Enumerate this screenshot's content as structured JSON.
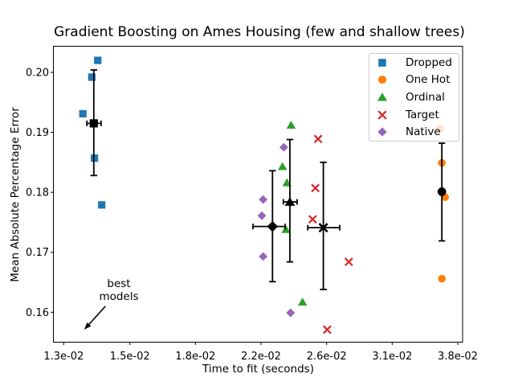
{
  "chart_data": {
    "type": "scatter",
    "title": "Gradient Boosting on Ames Housing (few and shallow trees)",
    "xlabel": "Time to fit (seconds)",
    "ylabel": "Mean Absolute Percentage Error",
    "x_scale": "log",
    "xlim": [
      0.0127,
      0.0385
    ],
    "ylim": [
      0.1551,
      0.2043
    ],
    "grid": false,
    "legend_position": "upper right",
    "x_axis": {
      "tick_values": [
        0.013,
        0.015,
        0.018,
        0.022,
        0.026,
        0.031,
        0.038
      ],
      "tick_labels": [
        "1.3e-02",
        "1.5e-02",
        "1.8e-02",
        "2.2e-02",
        "2.6e-02",
        "3.1e-02",
        "3.8e-02"
      ]
    },
    "y_axis": {
      "tick_values": [
        0.2,
        0.19,
        0.18,
        0.17,
        0.16
      ],
      "tick_labels": [
        "0.20",
        "0.19",
        "0.18",
        "0.17",
        "0.16"
      ]
    },
    "series": [
      {
        "name": "Dropped",
        "marker": "square",
        "color": "#1f77b4",
        "points": [
          [
            0.01403,
            0.202
          ],
          [
            0.01385,
            0.1992
          ],
          [
            0.01358,
            0.1931
          ],
          [
            0.01393,
            0.1857
          ],
          [
            0.01415,
            0.1779
          ]
        ],
        "mean": {
          "x": 0.01391,
          "y": 0.1915,
          "xlo": 0.0137,
          "xhi": 0.01413,
          "ylo": 0.1828,
          "yhi": 0.2004
        }
      },
      {
        "name": "One Hot",
        "marker": "circle",
        "color": "#ff7f0e",
        "points": [
          [
            0.0361,
            0.1906
          ],
          [
            0.0363,
            0.1849
          ],
          [
            0.03665,
            0.1792
          ],
          [
            0.0363,
            0.1656
          ]
        ],
        "mean": {
          "x": 0.0363,
          "y": 0.1801,
          "xlo": 0.0361,
          "xhi": 0.0365,
          "ylo": 0.1719,
          "yhi": 0.1882
        }
      },
      {
        "name": "Ordinal",
        "marker": "triangle",
        "color": "#2ca02c",
        "points": [
          [
            0.02383,
            0.1912
          ],
          [
            0.02331,
            0.1843
          ],
          [
            0.02358,
            0.1816
          ],
          [
            0.02352,
            0.1738
          ],
          [
            0.02453,
            0.1617
          ]
        ],
        "mean": {
          "x": 0.02376,
          "y": 0.1784,
          "xlo": 0.02336,
          "xhi": 0.0242,
          "ylo": 0.1684,
          "yhi": 0.1888
        }
      },
      {
        "name": "Target",
        "marker": "x",
        "color": "#d62728",
        "points": [
          [
            0.02548,
            0.1889
          ],
          [
            0.02531,
            0.1807
          ],
          [
            0.02515,
            0.1755
          ],
          [
            0.02769,
            0.1684
          ],
          [
            0.02604,
            0.1571
          ]
        ],
        "mean": {
          "x": 0.0258,
          "y": 0.1741,
          "xlo": 0.02485,
          "xhi": 0.027,
          "ylo": 0.1638,
          "yhi": 0.185
        }
      },
      {
        "name": "Native",
        "marker": "diamond",
        "color": "#9467bd",
        "points": [
          [
            0.02339,
            0.1875
          ],
          [
            0.02213,
            0.1788
          ],
          [
            0.02205,
            0.1761
          ],
          [
            0.02213,
            0.1693
          ],
          [
            0.0238,
            0.1599
          ]
        ],
        "mean": {
          "x": 0.0227,
          "y": 0.1743,
          "xlo": 0.02151,
          "xhi": 0.02347,
          "ylo": 0.1651,
          "yhi": 0.1836
        }
      }
    ],
    "mean_marker_color": "#000000",
    "annotation": {
      "text": "best\nmodels",
      "lines": [
        "best",
        "models"
      ],
      "text_xy": [
        0.01467,
        0.1637
      ],
      "arrow_start_xy": [
        0.01426,
        0.161
      ],
      "arrow_tip_xy": [
        0.01362,
        0.1571
      ]
    }
  }
}
